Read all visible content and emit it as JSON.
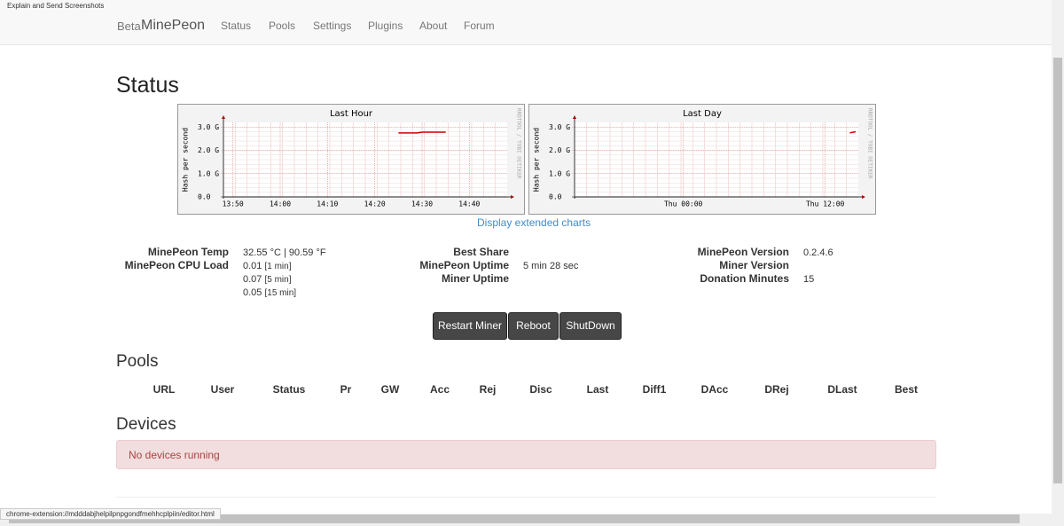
{
  "browser": {
    "extension_title": "Explain and Send Screenshots",
    "status_url": "chrome-extension://mdddabjhelpilpnpgondfmehhcplpiin/editor.html"
  },
  "navbar": {
    "brand_prefix": "Beta",
    "brand": "MinePeon",
    "links": [
      "Status",
      "Pools",
      "Settings",
      "Plugins",
      "About",
      "Forum"
    ]
  },
  "page_title": "Status",
  "graphs": [
    {
      "type": "line",
      "title": "Last Hour",
      "y_label": "Hash per second",
      "watermark": "RRDTOOL / TOBI OETIKER",
      "ylim": [
        0,
        3.2
      ],
      "yticks": [
        {
          "value": 0,
          "label": "0.0"
        },
        {
          "value": 1,
          "label": "1.0 G"
        },
        {
          "value": 2,
          "label": "2.0 G"
        },
        {
          "value": 3,
          "label": "3.0 G"
        }
      ],
      "xlim": [
        "13:48",
        "14:48"
      ],
      "xticks": [
        "13:50",
        "14:00",
        "14:10",
        "14:20",
        "14:30",
        "14:40"
      ],
      "grid": true,
      "color": "#cc0000",
      "x": [
        "14:25",
        "14:29",
        "14:30",
        "14:35"
      ],
      "values": [
        2.75,
        2.75,
        2.78,
        2.78
      ]
    },
    {
      "type": "line",
      "title": "Last Day",
      "y_label": "Hash per second",
      "watermark": "RRDTOOL / TOBI OETIKER",
      "ylim": [
        0,
        3.2
      ],
      "yticks": [
        {
          "value": 0,
          "label": "0.0"
        },
        {
          "value": 1,
          "label": "1.0 G"
        },
        {
          "value": 2,
          "label": "2.0 G"
        },
        {
          "value": 3,
          "label": "3.0 G"
        }
      ],
      "xlim": [
        "Wed 14:48",
        "Thu 14:48"
      ],
      "xticks": [
        "Thu 00:00",
        "Thu 12:00"
      ],
      "grid": true,
      "color": "#cc0000",
      "x": [
        "Thu 14:05",
        "Thu 14:35"
      ],
      "values": [
        2.75,
        2.8
      ]
    }
  ],
  "extended_charts_link": "Display extended charts",
  "stats": {
    "temp_label": "MinePeon Temp",
    "temp_value": "32.55 °C | 90.59 °F",
    "cpu_label": "MinePeon CPU Load",
    "cpu_load": [
      {
        "value": "0.01",
        "unit": "[1 min]"
      },
      {
        "value": "0.07",
        "unit": "[5 min]"
      },
      {
        "value": "0.05",
        "unit": "[15 min]"
      }
    ],
    "best_share_label": "Best Share",
    "uptime_label": "MinePeon Uptime",
    "uptime_value": "5 min 28 sec",
    "miner_uptime_label": "Miner Uptime",
    "version_label": "MinePeon Version",
    "version_value": "0.2.4.6",
    "miner_version_label": "Miner Version",
    "donation_label": "Donation Minutes",
    "donation_value": "15"
  },
  "buttons": [
    "Restart Miner",
    "Reboot",
    "ShutDown"
  ],
  "pools": {
    "heading": "Pools",
    "columns": [
      "URL",
      "User",
      "Status",
      "Pr",
      "GW",
      "Acc",
      "Rej",
      "Disc",
      "Last",
      "Diff1",
      "DAcc",
      "DRej",
      "DLast",
      "Best"
    ]
  },
  "devices": {
    "heading": "Devices",
    "message": "No devices running"
  }
}
